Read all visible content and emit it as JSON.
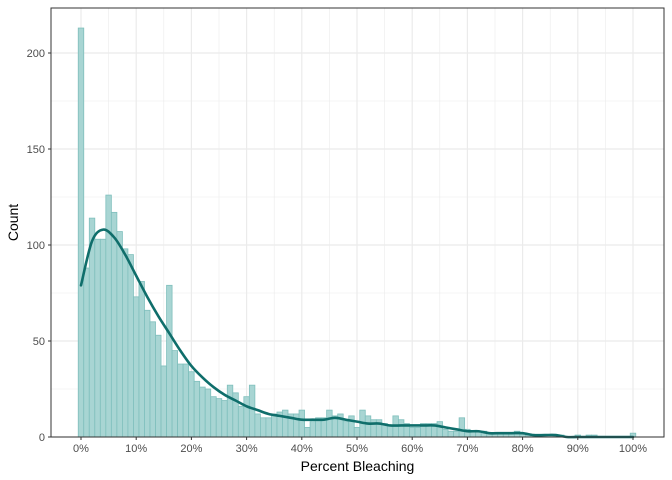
{
  "chart_data": {
    "type": "bar",
    "subtype": "histogram_with_density",
    "title": "",
    "xlabel": "Percent Bleaching",
    "ylabel": "Count",
    "xlim": [
      -2,
      103
    ],
    "ylim": [
      0,
      224
    ],
    "grid": true,
    "legend": null,
    "x_ticks": [
      "0%",
      "10%",
      "20%",
      "30%",
      "40%",
      "50%",
      "60%",
      "70%",
      "80%",
      "90%",
      "100%"
    ],
    "x_tick_values": [
      0,
      10,
      20,
      30,
      40,
      50,
      60,
      70,
      80,
      90,
      100
    ],
    "y_ticks": [
      "0",
      "50",
      "100",
      "150",
      "200"
    ],
    "y_tick_values": [
      0,
      50,
      100,
      150,
      200
    ],
    "bin_width": 1,
    "bins": [
      0,
      1,
      2,
      3,
      4,
      5,
      6,
      7,
      8,
      9,
      10,
      11,
      12,
      13,
      14,
      15,
      16,
      17,
      18,
      19,
      20,
      21,
      22,
      23,
      24,
      25,
      26,
      27,
      28,
      29,
      30,
      31,
      32,
      33,
      34,
      35,
      36,
      37,
      38,
      39,
      40,
      41,
      42,
      43,
      44,
      45,
      46,
      47,
      48,
      49,
      50,
      51,
      52,
      53,
      54,
      55,
      56,
      57,
      58,
      59,
      60,
      61,
      62,
      63,
      64,
      65,
      66,
      67,
      68,
      69,
      70,
      71,
      72,
      73,
      74,
      75,
      76,
      77,
      78,
      79,
      80,
      81,
      82,
      83,
      84,
      85,
      86,
      87,
      88,
      89,
      90,
      91,
      92,
      93,
      94,
      95,
      96,
      97,
      98,
      99,
      100
    ],
    "values": [
      213,
      88,
      114,
      103,
      103,
      126,
      117,
      107,
      98,
      95,
      73,
      81,
      66,
      60,
      53,
      37,
      79,
      45,
      38,
      38,
      34,
      29,
      26,
      25,
      21,
      20,
      19,
      27,
      23,
      16,
      21,
      27,
      12,
      10,
      10,
      12,
      13,
      14,
      12,
      12,
      14,
      5,
      8,
      10,
      10,
      14,
      11,
      12,
      8,
      11,
      5,
      14,
      11,
      9,
      9,
      7,
      6,
      11,
      9,
      7,
      5,
      5,
      7,
      7,
      7,
      8,
      4,
      3,
      3,
      10,
      4,
      3,
      3,
      3,
      2,
      2,
      2,
      2,
      2,
      3,
      2,
      1,
      1,
      1,
      0,
      0,
      0,
      1,
      0,
      0,
      1,
      0,
      1,
      1,
      0,
      0,
      0,
      0,
      0,
      0,
      2
    ],
    "density_curve": {
      "x": [
        0,
        2,
        4,
        6,
        8,
        10,
        12,
        14,
        16,
        18,
        20,
        22,
        24,
        26,
        28,
        30,
        32,
        34,
        36,
        38,
        40,
        42,
        44,
        46,
        48,
        50,
        52,
        54,
        56,
        58,
        60,
        62,
        64,
        66,
        68,
        70,
        72,
        74,
        76,
        78,
        80,
        82,
        84,
        86,
        88,
        90,
        92,
        94,
        96,
        98,
        100
      ],
      "y": [
        79,
        102,
        108,
        104,
        95,
        84,
        73,
        63,
        54,
        45,
        37,
        31,
        26,
        22,
        19,
        16,
        14,
        12,
        11,
        10,
        9,
        9,
        9,
        10,
        9,
        8,
        7,
        7,
        6,
        6,
        6,
        6,
        6,
        5,
        4,
        3,
        3,
        2,
        2,
        2,
        2,
        1,
        1,
        1,
        0,
        0,
        0,
        0,
        0,
        0,
        0
      ]
    },
    "colors": {
      "bar_fill": "#a8d5d3",
      "bar_stroke": "#7fbfbc",
      "curve": "#0f6e6b",
      "grid": "#ebebeb",
      "panel_border": "#333333"
    }
  }
}
